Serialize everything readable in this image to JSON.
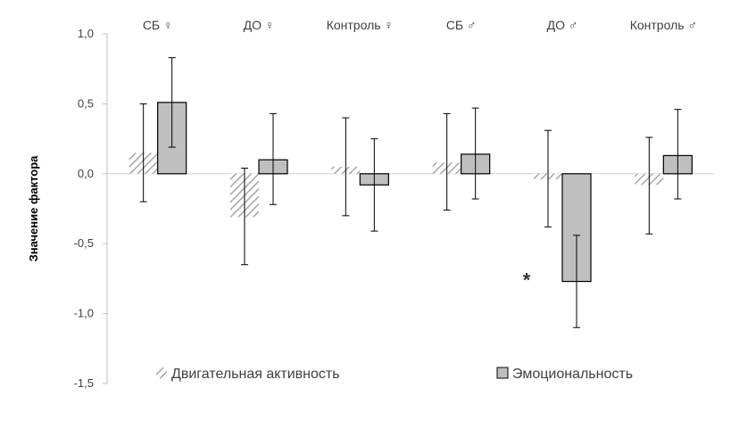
{
  "chart_data": {
    "type": "bar",
    "ylabel": "Значение фактора",
    "ylim": [
      -1.5,
      1.0
    ],
    "yticks": [
      1.0,
      0.5,
      0.0,
      -0.5,
      -1.0,
      -1.5
    ],
    "ytick_labels": [
      "1,0",
      "0,5",
      "0,0",
      "-0,5",
      "-1,0",
      "-1,5"
    ],
    "categories": [
      "СБ ♀",
      "ДО ♀",
      "Контроль ♀",
      "СБ ♂",
      "ДО ♂",
      "Контроль ♂"
    ],
    "category_label_position": "top",
    "grid": false,
    "legend_position": "bottom",
    "series": [
      {
        "name": "Двигательная активность",
        "style": "hatched",
        "color": "#bfbfbf",
        "values": [
          0.15,
          -0.31,
          0.05,
          0.08,
          -0.04,
          -0.08
        ],
        "err_low": [
          -0.2,
          -0.65,
          -0.3,
          -0.26,
          -0.38,
          -0.43
        ],
        "err_high": [
          0.5,
          0.04,
          0.4,
          0.43,
          0.31,
          0.26
        ]
      },
      {
        "name": "Эмоциональность",
        "style": "solid",
        "color": "#bfbfbf",
        "values": [
          0.51,
          0.1,
          -0.08,
          0.14,
          -0.77,
          0.13
        ],
        "err_low": [
          0.19,
          -0.22,
          -0.41,
          -0.18,
          -1.1,
          -0.18
        ],
        "err_high": [
          0.83,
          0.43,
          0.25,
          0.47,
          -0.44,
          0.46
        ]
      }
    ],
    "annotations": [
      {
        "text": "*",
        "category": 4
      }
    ]
  }
}
